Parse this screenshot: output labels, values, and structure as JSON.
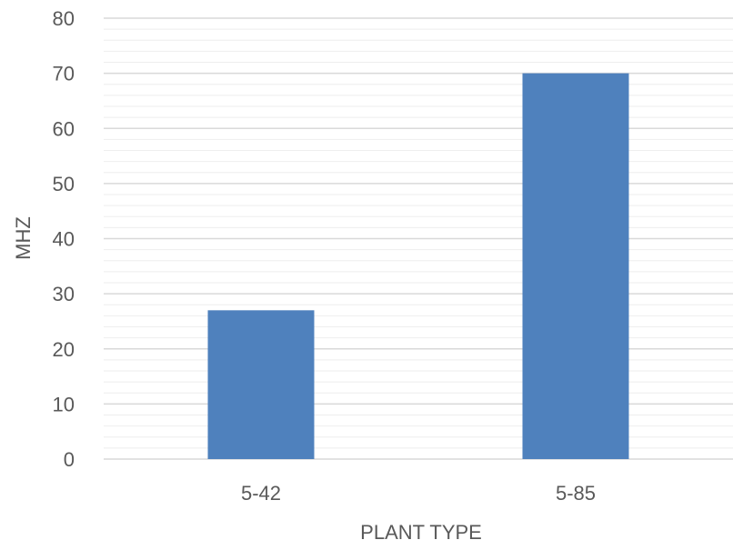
{
  "chart_data": {
    "type": "bar",
    "title": "",
    "xlabel": "PLANT TYPE",
    "ylabel": "MHZ",
    "categories": [
      "5-42",
      "5-85"
    ],
    "series": [
      {
        "values": [
          27,
          70
        ]
      }
    ],
    "ylim": [
      0,
      80
    ],
    "y_major_step": 10,
    "y_minor_step": 2,
    "y_tick_labels": [
      "0",
      "10",
      "20",
      "30",
      "40",
      "50",
      "60",
      "70",
      "80"
    ],
    "grid": true,
    "legend": "none",
    "bar_color": "#4f81bd",
    "major_grid_color": "#d9d9d9",
    "minor_grid_color": "#eeeeee",
    "text_color": "#595959"
  }
}
